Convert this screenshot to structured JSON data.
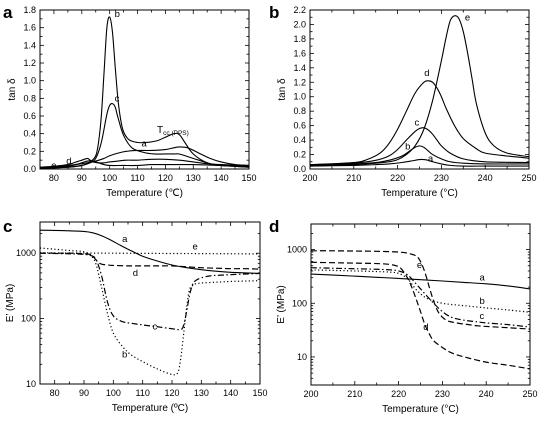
{
  "chart_data": [
    {
      "type": "line",
      "panel_label": "a",
      "xlabel": "Temperature (℃)",
      "ylabel": "tan δ",
      "xlim": [
        75,
        150
      ],
      "ylim": [
        0,
        1.8
      ],
      "y_scale": "linear",
      "xticks": [
        80,
        90,
        100,
        110,
        120,
        130,
        140,
        150
      ],
      "yticks": [
        0.0,
        0.2,
        0.4,
        0.6,
        0.8,
        1.0,
        1.2,
        1.4,
        1.6,
        1.8
      ],
      "annotations": [
        {
          "text": "T",
          "sub": "cc (PPS)",
          "x": 117,
          "y": 0.41
        }
      ],
      "series": [
        {
          "name": "a",
          "style": "solid",
          "x": [
            75,
            80,
            85,
            90,
            95,
            98,
            100,
            103,
            106,
            110,
            115,
            120,
            123,
            125,
            128,
            132,
            136,
            140,
            145,
            150
          ],
          "y": [
            0.01,
            0.02,
            0.04,
            0.06,
            0.09,
            0.12,
            0.15,
            0.18,
            0.2,
            0.21,
            0.21,
            0.22,
            0.24,
            0.25,
            0.24,
            0.18,
            0.12,
            0.08,
            0.05,
            0.04
          ]
        },
        {
          "name": "b",
          "style": "solid",
          "x": [
            75,
            85,
            90,
            93,
            95,
            96,
            97,
            98,
            99,
            100,
            101,
            102,
            103,
            104,
            105,
            107,
            110,
            113,
            117,
            120,
            123,
            125,
            127,
            130,
            135,
            140,
            145,
            150
          ],
          "y": [
            0.01,
            0.02,
            0.04,
            0.08,
            0.15,
            0.3,
            0.6,
            1.1,
            1.6,
            1.72,
            1.55,
            1.15,
            0.78,
            0.55,
            0.42,
            0.33,
            0.3,
            0.3,
            0.32,
            0.36,
            0.4,
            0.39,
            0.3,
            0.17,
            0.07,
            0.04,
            0.03,
            0.02
          ]
        },
        {
          "name": "c",
          "style": "solid",
          "x": [
            75,
            85,
            90,
            93,
            95,
            97,
            99,
            100,
            101,
            102,
            103,
            105,
            108,
            112,
            116,
            120,
            123,
            125,
            128,
            132,
            136,
            140,
            145,
            150
          ],
          "y": [
            0.01,
            0.02,
            0.04,
            0.07,
            0.12,
            0.3,
            0.62,
            0.72,
            0.74,
            0.7,
            0.58,
            0.38,
            0.24,
            0.19,
            0.17,
            0.17,
            0.17,
            0.17,
            0.14,
            0.1,
            0.06,
            0.04,
            0.03,
            0.02
          ]
        },
        {
          "name": "d",
          "style": "solid",
          "x": [
            75,
            80,
            85,
            88,
            90,
            92,
            93,
            94,
            96,
            98,
            100,
            103,
            106,
            110,
            115,
            120,
            125,
            130,
            135,
            140,
            150
          ],
          "y": [
            0.02,
            0.03,
            0.05,
            0.08,
            0.1,
            0.12,
            0.1,
            0.08,
            0.07,
            0.07,
            0.08,
            0.09,
            0.1,
            0.1,
            0.11,
            0.11,
            0.1,
            0.08,
            0.06,
            0.05,
            0.04
          ]
        },
        {
          "name": "e",
          "style": "solid",
          "x": [
            75,
            80,
            85,
            88,
            90,
            92,
            94,
            96,
            98,
            100,
            105,
            110,
            115,
            120,
            130,
            140,
            150
          ],
          "y": [
            0.01,
            0.02,
            0.03,
            0.05,
            0.07,
            0.09,
            0.09,
            0.07,
            0.05,
            0.04,
            0.04,
            0.04,
            0.05,
            0.05,
            0.05,
            0.04,
            0.03
          ]
        }
      ]
    },
    {
      "type": "line",
      "panel_label": "b",
      "xlabel": "Temperature (°C)",
      "ylabel": "tan δ",
      "xlim": [
        200,
        250
      ],
      "ylim": [
        0,
        2.2
      ],
      "y_scale": "linear",
      "xticks": [
        200,
        210,
        220,
        230,
        240,
        250
      ],
      "yticks": [
        0.0,
        0.2,
        0.4,
        0.6,
        0.8,
        1.0,
        1.2,
        1.4,
        1.6,
        1.8,
        2.0,
        2.2
      ],
      "series": [
        {
          "name": "a",
          "style": "solid",
          "x": [
            200,
            210,
            215,
            218,
            221,
            223,
            225,
            226,
            227,
            228,
            230,
            232,
            235,
            240,
            245,
            250
          ],
          "y": [
            0.04,
            0.05,
            0.06,
            0.07,
            0.09,
            0.11,
            0.13,
            0.13,
            0.12,
            0.1,
            0.07,
            0.05,
            0.04,
            0.04,
            0.04,
            0.04
          ]
        },
        {
          "name": "b",
          "style": "solid",
          "x": [
            200,
            210,
            215,
            218,
            221,
            223,
            224,
            225,
            226,
            227,
            228,
            230,
            232,
            235,
            240,
            250
          ],
          "y": [
            0.05,
            0.07,
            0.09,
            0.12,
            0.18,
            0.26,
            0.3,
            0.32,
            0.3,
            0.25,
            0.2,
            0.14,
            0.1,
            0.08,
            0.07,
            0.07
          ]
        },
        {
          "name": "c",
          "style": "solid",
          "x": [
            200,
            210,
            215,
            218,
            220,
            222,
            224,
            225,
            226,
            227,
            228,
            229,
            230,
            232,
            235,
            240,
            250
          ],
          "y": [
            0.06,
            0.08,
            0.12,
            0.18,
            0.27,
            0.4,
            0.52,
            0.56,
            0.57,
            0.54,
            0.48,
            0.4,
            0.32,
            0.22,
            0.14,
            0.1,
            0.09
          ]
        },
        {
          "name": "d",
          "style": "solid",
          "x": [
            200,
            210,
            213,
            216,
            218,
            220,
            222,
            224,
            226,
            227,
            228,
            229,
            230,
            231,
            233,
            235,
            238,
            240,
            245,
            250
          ],
          "y": [
            0.06,
            0.09,
            0.13,
            0.22,
            0.35,
            0.55,
            0.8,
            1.05,
            1.2,
            1.22,
            1.2,
            1.12,
            1.0,
            0.85,
            0.6,
            0.42,
            0.28,
            0.22,
            0.18,
            0.15
          ]
        },
        {
          "name": "e",
          "style": "solid",
          "x": [
            200,
            210,
            215,
            218,
            220,
            222,
            224,
            226,
            228,
            230,
            231,
            232,
            233,
            234,
            235,
            236,
            237,
            238,
            240,
            242,
            245,
            250
          ],
          "y": [
            0.04,
            0.06,
            0.08,
            0.1,
            0.13,
            0.2,
            0.32,
            0.55,
            0.95,
            1.5,
            1.8,
            2.05,
            2.12,
            2.08,
            1.9,
            1.6,
            1.25,
            0.9,
            0.5,
            0.32,
            0.22,
            0.17
          ]
        }
      ]
    },
    {
      "type": "line",
      "panel_label": "c",
      "xlabel": "Temperature (ºC)",
      "ylabel": "E’ (MPa)",
      "xlim": [
        75,
        150
      ],
      "ylim": [
        10,
        3000
      ],
      "y_scale": "log",
      "xticks": [
        80,
        90,
        100,
        110,
        120,
        130,
        140,
        150
      ],
      "yticks": [
        10,
        100,
        1000
      ],
      "series": [
        {
          "name": "a",
          "style": "solid",
          "x": [
            75,
            80,
            85,
            90,
            93,
            96,
            99,
            102,
            105,
            110,
            115,
            120,
            125,
            130,
            135,
            140,
            145,
            150
          ],
          "y": [
            2250,
            2230,
            2200,
            2150,
            2050,
            1850,
            1600,
            1350,
            1150,
            900,
            760,
            660,
            600,
            560,
            530,
            510,
            500,
            490
          ]
        },
        {
          "name": "b",
          "style": "dot",
          "x": [
            75,
            80,
            85,
            88,
            90,
            92,
            94,
            96,
            98,
            100,
            103,
            106,
            110,
            115,
            120,
            122,
            123,
            124,
            125,
            126,
            127,
            128,
            130,
            135,
            140,
            145,
            150
          ],
          "y": [
            1200,
            1150,
            1100,
            1080,
            1050,
            950,
            700,
            300,
            120,
            60,
            38,
            28,
            22,
            17,
            14,
            15,
            25,
            60,
            150,
            280,
            320,
            340,
            350,
            360,
            370,
            375,
            380
          ]
        },
        {
          "name": "c",
          "style": "dashdot",
          "x": [
            75,
            80,
            85,
            88,
            90,
            92,
            94,
            96,
            98,
            100,
            103,
            106,
            110,
            115,
            120,
            123,
            124,
            125,
            126,
            127,
            128,
            130,
            133,
            136,
            140,
            145,
            150
          ],
          "y": [
            1000,
            990,
            980,
            970,
            960,
            930,
            820,
            450,
            180,
            110,
            90,
            85,
            80,
            75,
            70,
            68,
            80,
            130,
            230,
            330,
            380,
            420,
            450,
            460,
            470,
            480,
            490
          ]
        },
        {
          "name": "d",
          "style": "dash",
          "x": [
            75,
            80,
            85,
            88,
            90,
            92,
            93,
            94,
            95,
            96,
            98,
            100,
            105,
            110,
            115,
            120,
            125,
            130,
            135,
            140,
            145,
            150
          ],
          "y": [
            1000,
            1000,
            1000,
            990,
            980,
            960,
            900,
            800,
            720,
            680,
            660,
            650,
            640,
            640,
            640,
            640,
            620,
            600,
            590,
            580,
            580,
            570
          ]
        },
        {
          "name": "e",
          "style": "dot",
          "x": [
            75,
            80,
            90,
            100,
            110,
            120,
            130,
            140,
            150
          ],
          "y": [
            1020,
            1010,
            1005,
            1000,
            995,
            990,
            985,
            980,
            975
          ]
        }
      ]
    },
    {
      "type": "line",
      "panel_label": "d",
      "xlabel": "Temperature (°C)",
      "ylabel": "E’ (MPa)",
      "xlim": [
        200,
        250
      ],
      "ylim": [
        3,
        3000
      ],
      "y_scale": "log",
      "xticks": [
        200,
        210,
        220,
        230,
        240,
        250
      ],
      "yticks": [
        10,
        100,
        1000
      ],
      "series": [
        {
          "name": "a",
          "style": "solid",
          "x": [
            200,
            205,
            210,
            215,
            220,
            225,
            230,
            235,
            240,
            245,
            250
          ],
          "y": [
            350,
            335,
            320,
            305,
            290,
            275,
            260,
            245,
            230,
            210,
            185
          ]
        },
        {
          "name": "b",
          "style": "dot",
          "x": [
            200,
            205,
            210,
            215,
            218,
            220,
            222,
            224,
            226,
            228,
            230,
            232,
            235,
            240,
            245,
            250
          ],
          "y": [
            420,
            410,
            400,
            390,
            380,
            360,
            290,
            180,
            130,
            110,
            100,
            95,
            90,
            82,
            75,
            68
          ]
        },
        {
          "name": "c",
          "style": "dashdot",
          "x": [
            200,
            205,
            210,
            215,
            218,
            220,
            222,
            224,
            226,
            228,
            230,
            232,
            234,
            236,
            238,
            240,
            245,
            250
          ],
          "y": [
            460,
            450,
            440,
            430,
            420,
            400,
            340,
            230,
            150,
            100,
            70,
            55,
            50,
            47,
            45,
            43,
            40,
            36
          ]
        },
        {
          "name": "d",
          "style": "dash",
          "x": [
            200,
            205,
            210,
            215,
            218,
            220,
            221,
            222,
            223,
            224,
            225,
            226,
            227,
            228,
            230,
            232,
            235,
            240,
            245,
            250
          ],
          "y": [
            580,
            570,
            560,
            550,
            530,
            480,
            400,
            300,
            200,
            120,
            70,
            40,
            27,
            20,
            15,
            12,
            10,
            8,
            7,
            6
          ]
        },
        {
          "name": "e",
          "style": "dash",
          "x": [
            200,
            205,
            210,
            215,
            220,
            222,
            224,
            225,
            226,
            227,
            228,
            229,
            230,
            231,
            232,
            234,
            236,
            238,
            240,
            245,
            250
          ],
          "y": [
            950,
            950,
            940,
            930,
            900,
            860,
            760,
            600,
            380,
            200,
            110,
            70,
            55,
            48,
            45,
            42,
            40,
            38,
            37,
            35,
            33
          ]
        }
      ]
    }
  ]
}
